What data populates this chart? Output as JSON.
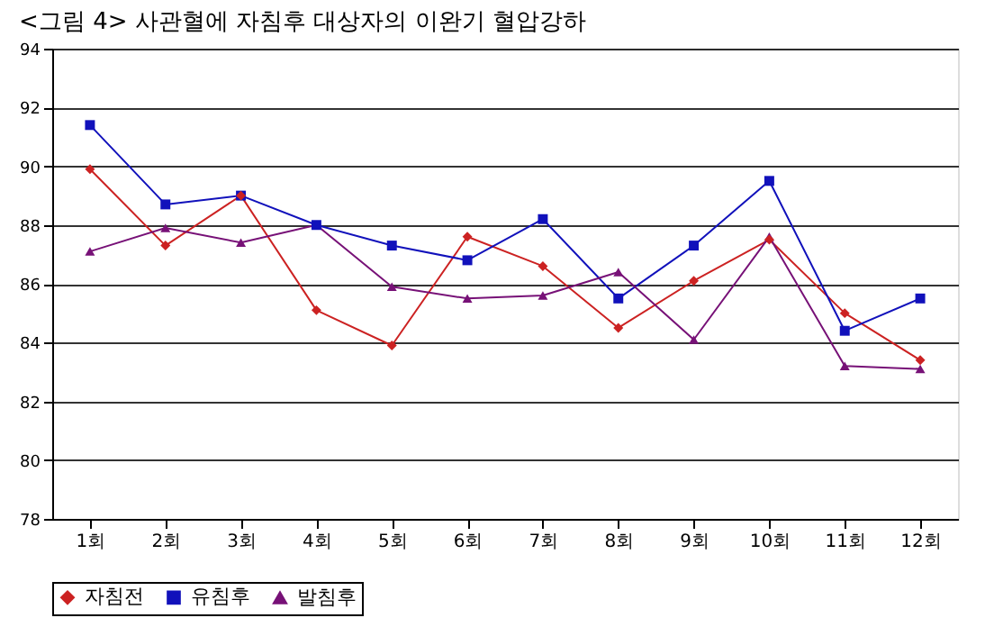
{
  "chart_data": {
    "type": "line",
    "title": "<그림 4> 사관혈에 자침후 대상자의 이완기 혈압강하",
    "categories": [
      "1회",
      "2회",
      "3회",
      "4회",
      "5회",
      "6회",
      "7회",
      "8회",
      "9회",
      "10회",
      "11회",
      "12회"
    ],
    "series": [
      {
        "name": "자침전",
        "color": "#cc2222",
        "marker": "diamond",
        "values": [
          89.9,
          87.3,
          89.0,
          85.1,
          83.9,
          87.6,
          86.6,
          84.5,
          86.1,
          87.5,
          85.0,
          83.4
        ]
      },
      {
        "name": "유침후",
        "color": "#1111bb",
        "marker": "square",
        "values": [
          91.4,
          88.7,
          89.0,
          88.0,
          87.3,
          86.8,
          88.2,
          85.5,
          87.3,
          89.5,
          84.4,
          85.5
        ]
      },
      {
        "name": "발침후",
        "color": "#771177",
        "marker": "triangle",
        "values": [
          87.1,
          87.9,
          87.4,
          88.0,
          85.9,
          85.5,
          85.6,
          86.4,
          84.1,
          87.6,
          83.2,
          83.1
        ]
      }
    ],
    "ylim": [
      78,
      94
    ],
    "yticks": [
      78,
      80,
      82,
      84,
      86,
      88,
      90,
      92,
      94
    ],
    "grid": "y",
    "legend": "bottom",
    "line_style": "solid"
  }
}
